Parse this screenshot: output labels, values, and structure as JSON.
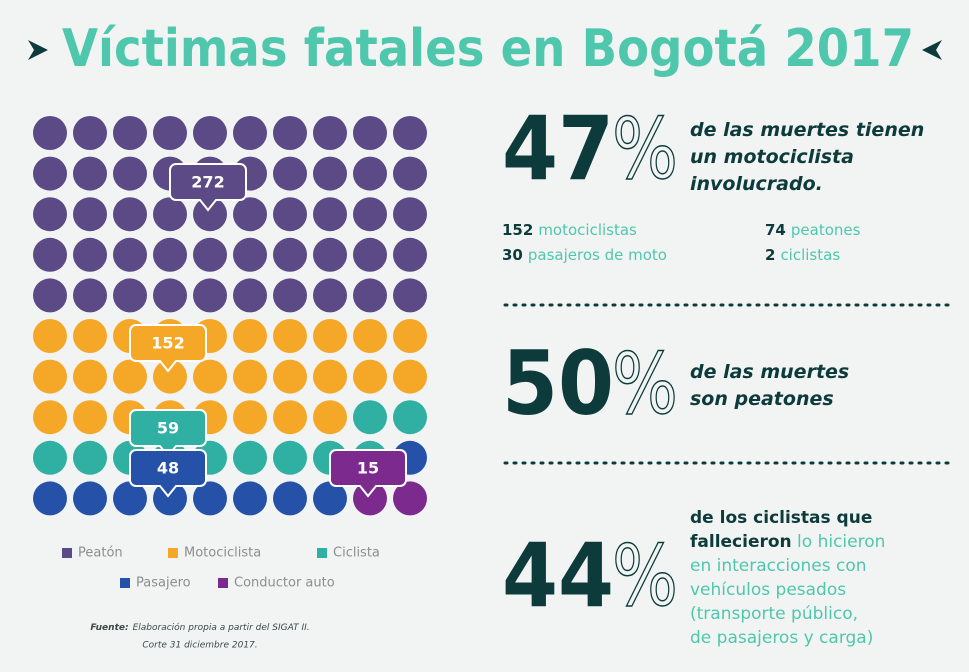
{
  "chart_data": {
    "type": "waffle",
    "title": "Víctimas fatales en Bogotá 2017",
    "series": [
      {
        "name": "Peatón",
        "color": "#5b4a86",
        "values": [
          272
        ]
      },
      {
        "name": "Motociclista",
        "color": "#f5a828",
        "values": [
          152
        ]
      },
      {
        "name": "Ciclista",
        "color": "#2fb0a3",
        "values": [
          59
        ]
      },
      {
        "name": "Pasajero",
        "color": "#2552a8",
        "values": [
          48
        ]
      },
      {
        "name": "Conductor auto",
        "color": "#7d2a8e",
        "values": [
          15
        ]
      }
    ],
    "source": {
      "label": "Fuente:",
      "lines": [
        "Elaboración propia a partir del SIGAT II.",
        "Corte 31 diciembre 2017."
      ]
    }
  },
  "stats": [
    {
      "value": 47,
      "symbol": "%",
      "lines": [
        [
          {
            "text": "de las muertes tienen",
            "bold": true
          }
        ],
        [
          {
            "text": "un motociclista",
            "bold": true
          }
        ],
        [
          {
            "text": "involucrado.",
            "bold": true
          }
        ]
      ],
      "details": [
        {
          "value": 152,
          "label": "motociclistas"
        },
        {
          "value": 30,
          "label": "pasajeros de moto"
        },
        {
          "value": 74,
          "label": "peatones"
        },
        {
          "value": 2,
          "label": "ciclistas"
        }
      ]
    },
    {
      "value": 50,
      "symbol": "%",
      "lines": [
        [
          {
            "text": "de las muertes",
            "bold": true
          }
        ],
        [
          {
            "text": "son peatones",
            "bold": true
          }
        ]
      ]
    },
    {
      "value": 44,
      "symbol": "%",
      "lines": [
        [
          {
            "text": "de los ciclistas que",
            "bold": true
          }
        ],
        [
          {
            "text": "fallecieron",
            "bold": true
          },
          {
            "text": " lo hicieron",
            "bold": false
          }
        ],
        [
          {
            "text": "en interacciones con",
            "bold": false
          }
        ],
        [
          {
            "text": "vehículos pesados",
            "bold": false
          }
        ],
        [
          {
            "text": "(transporte público,",
            "bold": false
          }
        ],
        [
          {
            "text": "de pasajeros y carga)",
            "bold": false
          }
        ]
      ]
    }
  ]
}
